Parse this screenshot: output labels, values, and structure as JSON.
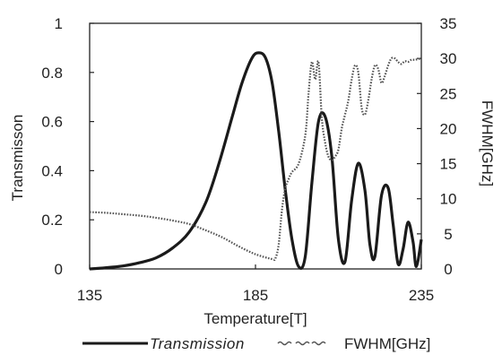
{
  "chart_data": {
    "type": "line",
    "xlabel": "Temperature[T]",
    "ylabel_left": "Transmisson",
    "ylabel_right": "FWHM[GHz]",
    "xlim": [
      135,
      235
    ],
    "ylim_left": [
      0,
      1
    ],
    "ylim_right": [
      0,
      35
    ],
    "x_ticks": [
      "135",
      "185",
      "235"
    ],
    "y_left_ticks": [
      "0",
      "0.2",
      "0.4",
      "0.6",
      "0.8",
      "1"
    ],
    "y_right_ticks": [
      "0",
      "5",
      "10",
      "15",
      "20",
      "25",
      "30",
      "35"
    ],
    "grid": false,
    "legend_position": "bottom",
    "series": [
      {
        "name": "Transmission",
        "axis": "left",
        "style": "solid-thick",
        "color": "#1a1a1a",
        "x": [
          135,
          140,
          145,
          150,
          155,
          160,
          165,
          170,
          174,
          178,
          181,
          184,
          186,
          188,
          190,
          192,
          194,
          196,
          198,
          200,
          202,
          204,
          206,
          208,
          210,
          212,
          214,
          216,
          218,
          219.5,
          221,
          223,
          225,
          226.5,
          228,
          229.5,
          231,
          232.5,
          233.5,
          235
        ],
        "y": [
          0.0,
          0.005,
          0.012,
          0.025,
          0.045,
          0.085,
          0.15,
          0.27,
          0.43,
          0.62,
          0.76,
          0.86,
          0.88,
          0.86,
          0.76,
          0.56,
          0.32,
          0.12,
          0.01,
          0.05,
          0.35,
          0.6,
          0.62,
          0.46,
          0.12,
          0.03,
          0.28,
          0.43,
          0.32,
          0.1,
          0.05,
          0.3,
          0.33,
          0.18,
          0.02,
          0.08,
          0.19,
          0.11,
          0.01,
          0.12
        ]
      },
      {
        "name": "FWHM[GHz]",
        "axis": "right",
        "style": "dotted",
        "color": "#555555",
        "x": [
          135,
          140,
          145,
          150,
          155,
          160,
          165,
          170,
          175,
          180,
          185,
          190,
          191,
          192,
          193,
          194,
          195,
          196,
          198,
          200,
          201,
          202,
          203,
          204,
          205,
          206,
          207,
          208,
          209,
          210,
          211,
          212,
          213,
          214,
          215,
          216,
          217,
          218,
          219,
          220,
          221,
          222,
          223,
          224,
          225,
          226,
          227,
          228,
          229,
          230,
          231,
          232,
          233,
          234,
          235
        ],
        "y": [
          8.1,
          8.0,
          7.8,
          7.6,
          7.3,
          6.9,
          6.4,
          5.5,
          4.5,
          3.2,
          2.1,
          1.4,
          1.5,
          3.5,
          8.5,
          11.5,
          12.8,
          13.8,
          15.0,
          19.0,
          25.0,
          29.5,
          27.0,
          29.5,
          21.5,
          18.0,
          16.0,
          15.5,
          16.0,
          17.0,
          20.0,
          22.0,
          24.0,
          27.0,
          29.0,
          28.0,
          23.0,
          22.0,
          24.0,
          27.0,
          29.0,
          28.5,
          26.5,
          27.5,
          29.0,
          30.0,
          30.0,
          29.5,
          29.2,
          29.6,
          29.5,
          29.8,
          29.8,
          29.9,
          30.0
        ]
      }
    ]
  },
  "legend": {
    "items": [
      {
        "label": "Transmission"
      },
      {
        "label": "FWHM[GHz]"
      }
    ]
  }
}
